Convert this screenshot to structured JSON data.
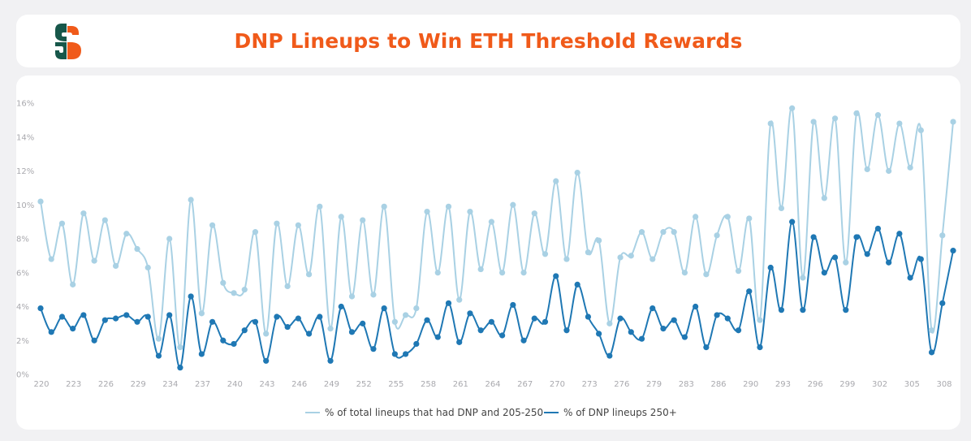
{
  "header": {
    "title": "DNP Lineups to Win ETH Threshold Rewards",
    "logo_colors": {
      "primary": "#17574a",
      "accent": "#f05a1a"
    }
  },
  "chart_data": {
    "type": "line",
    "title": "DNP Lineups to Win ETH Threshold Rewards",
    "xlabel": "",
    "ylabel": "",
    "ylim": [
      0,
      16
    ],
    "yticks": [
      "0%",
      "2%",
      "4%",
      "6%",
      "8%",
      "10%",
      "12%",
      "14%",
      "16%"
    ],
    "xtick_labels": [
      "220",
      "223",
      "226",
      "229",
      "234",
      "237",
      "240",
      "243",
      "246",
      "249",
      "252",
      "255",
      "258",
      "261",
      "264",
      "267",
      "270",
      "273",
      "276",
      "279",
      "283",
      "286",
      "290",
      "293",
      "296",
      "299",
      "302",
      "305",
      "308"
    ],
    "grid": false,
    "legend_position": "bottom-center",
    "series": [
      {
        "name": "% of total lineups that had DNP and 205-250",
        "color": "#a9d1e4",
        "values": [
          10.2,
          6.8,
          8.9,
          5.3,
          9.5,
          6.7,
          9.1,
          6.4,
          8.3,
          7.4,
          6.3,
          2.1,
          8.0,
          1.6,
          10.3,
          3.6,
          8.8,
          5.4,
          4.8,
          5.0,
          8.4,
          2.4,
          8.9,
          5.2,
          8.8,
          5.9,
          9.9,
          2.7,
          9.3,
          4.6,
          9.1,
          4.7,
          9.9,
          3.1,
          3.5,
          3.9,
          9.6,
          6.0,
          9.9,
          4.4,
          9.6,
          6.2,
          9.0,
          6.0,
          10.0,
          6.0,
          9.5,
          7.1,
          11.4,
          6.8,
          11.9,
          7.2,
          7.9,
          3.0,
          6.9,
          7.0,
          8.4,
          6.8,
          8.4,
          8.4,
          6.0,
          9.3,
          5.9,
          8.2,
          9.3,
          6.1,
          9.2,
          3.2,
          14.8,
          9.8,
          15.7,
          5.7,
          14.9,
          10.4,
          15.1,
          6.6,
          15.4,
          12.1,
          15.3,
          12.0,
          14.8,
          12.2,
          14.4,
          2.6,
          8.2,
          14.9
        ]
      },
      {
        "name": "% of DNP lineups 250+",
        "color": "#1f78b4",
        "values": [
          3.9,
          2.5,
          3.4,
          2.7,
          3.5,
          2.0,
          3.2,
          3.3,
          3.5,
          3.1,
          3.4,
          1.1,
          3.5,
          0.4,
          4.6,
          1.2,
          3.1,
          2.0,
          1.8,
          2.6,
          3.1,
          0.8,
          3.4,
          2.8,
          3.3,
          2.4,
          3.4,
          0.8,
          4.0,
          2.5,
          3.0,
          1.5,
          3.9,
          1.2,
          1.2,
          1.8,
          3.2,
          2.2,
          4.2,
          1.9,
          3.6,
          2.6,
          3.1,
          2.3,
          4.1,
          2.0,
          3.3,
          3.1,
          5.8,
          2.6,
          5.3,
          3.4,
          2.4,
          1.1,
          3.3,
          2.5,
          2.1,
          3.9,
          2.7,
          3.2,
          2.2,
          4.0,
          1.6,
          3.5,
          3.3,
          2.6,
          4.9,
          1.6,
          6.3,
          3.8,
          9.0,
          3.8,
          8.1,
          6.0,
          6.9,
          3.8,
          8.1,
          7.1,
          8.6,
          6.6,
          8.3,
          5.7,
          6.8,
          1.3,
          4.2,
          7.3
        ]
      }
    ]
  }
}
